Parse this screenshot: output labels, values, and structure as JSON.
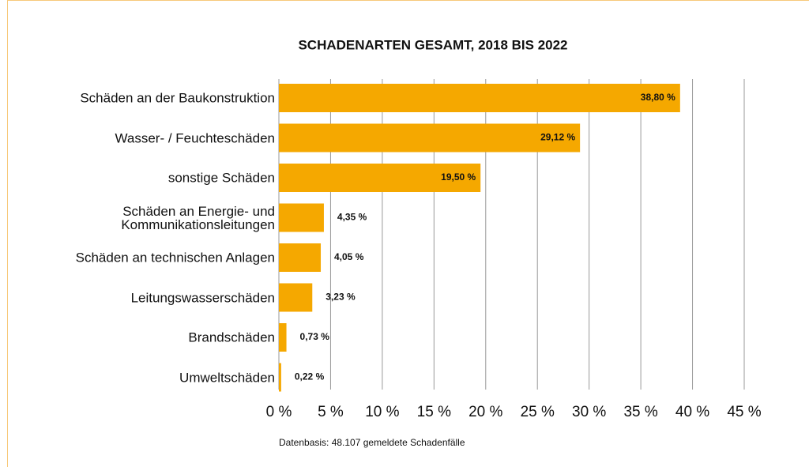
{
  "chart_data": {
    "type": "bar",
    "orientation": "horizontal",
    "title": "SCHADENARTEN GESAMT, 2018 BIS 2022",
    "categories": [
      "Schäden an der Baukonstruktion",
      "Wasser- / Feuchteschäden",
      "sonstige Schäden",
      "Schäden an Energie- und\nKommunikationsleitungen",
      "Schäden an technischen Anlagen",
      "Leitungswasserschäden",
      "Brandschäden",
      "Umweltschäden"
    ],
    "values": [
      38.8,
      29.12,
      19.5,
      4.35,
      4.05,
      3.23,
      0.73,
      0.22
    ],
    "value_labels": [
      "38,80 %",
      "29,12 %",
      "19,50 %",
      "4,35 %",
      "4,05 %",
      "3,23 %",
      "0,73 %",
      "0,22 %"
    ],
    "color": "#f5a800",
    "xlim": [
      0,
      45
    ],
    "xticks": [
      {
        "value": 0,
        "label": "0 %"
      },
      {
        "value": 5,
        "label": "5 %"
      },
      {
        "value": 10,
        "label": "10 %"
      },
      {
        "value": 15,
        "label": "15 %"
      },
      {
        "value": 20,
        "label": "20 %"
      },
      {
        "value": 25,
        "label": "25 %"
      },
      {
        "value": 30,
        "label": "30 %"
      },
      {
        "value": 35,
        "label": "35 %"
      },
      {
        "value": 40,
        "label": "40 %"
      },
      {
        "value": 45,
        "label": "45 %"
      }
    ],
    "grid": true,
    "note": "Datenbasis: 48.107 gemeldete Schadenfälle"
  }
}
